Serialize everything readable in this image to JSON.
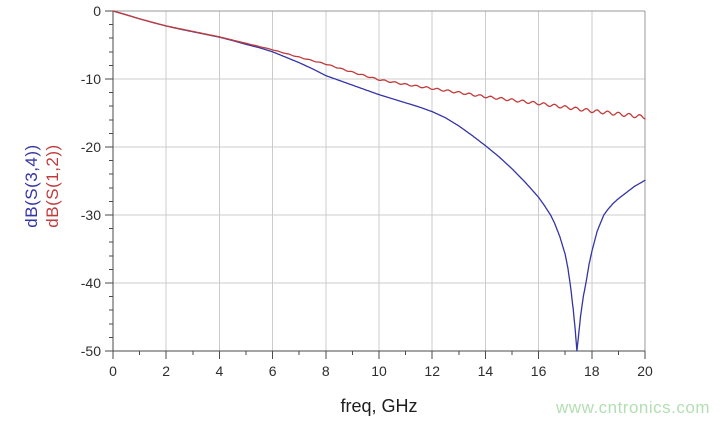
{
  "watermark": {
    "text": "www.cntronics.com",
    "color": "#b2dfb2"
  },
  "colors": {
    "background": "#ffffff",
    "grid": "#cccccc",
    "axis": "#4a4a4a",
    "frame": "#9a9a9a",
    "tick_text": "#2e2e2e"
  },
  "chart_data": {
    "type": "line",
    "title": "",
    "xlabel": "freq, GHz",
    "ylabel_lines": [
      {
        "text": "dB(S(3,4))",
        "color": "#3434a6"
      },
      {
        "text": "dB(S(1,2))",
        "color": "#c23b3b"
      }
    ],
    "xlim": [
      0,
      20
    ],
    "ylim": [
      -50,
      0
    ],
    "x_major_ticks": [
      0,
      2,
      4,
      6,
      8,
      10,
      12,
      14,
      16,
      18,
      20
    ],
    "x_minor_ticks": [
      1,
      3,
      5,
      7,
      9,
      11,
      13,
      15,
      17,
      19
    ],
    "y_major_ticks": [
      0,
      -10,
      -20,
      -30,
      -40,
      -50
    ],
    "y_minor_step": 2,
    "grid": true,
    "legend_position": "rotated labels on left axis",
    "series": [
      {
        "name": "dB(S(3,4))",
        "color": "#3434a6",
        "points": [
          [
            0,
            0
          ],
          [
            0.5,
            -0.55
          ],
          [
            1,
            -1.15
          ],
          [
            1.5,
            -1.7
          ],
          [
            2,
            -2.2
          ],
          [
            2.5,
            -2.65
          ],
          [
            3,
            -3.05
          ],
          [
            3.5,
            -3.45
          ],
          [
            4,
            -3.85
          ],
          [
            4.5,
            -4.35
          ],
          [
            5,
            -4.9
          ],
          [
            5.5,
            -5.4
          ],
          [
            6,
            -6.0
          ],
          [
            6.5,
            -6.8
          ],
          [
            7,
            -7.6
          ],
          [
            7.5,
            -8.5
          ],
          [
            8,
            -9.5
          ],
          [
            8.5,
            -10.2
          ],
          [
            9,
            -10.9
          ],
          [
            9.5,
            -11.6
          ],
          [
            10,
            -12.3
          ],
          [
            10.5,
            -12.9
          ],
          [
            11,
            -13.5
          ],
          [
            11.5,
            -14.1
          ],
          [
            12,
            -14.8
          ],
          [
            12.5,
            -15.7
          ],
          [
            13,
            -16.9
          ],
          [
            13.5,
            -18.3
          ],
          [
            14,
            -19.8
          ],
          [
            14.5,
            -21.4
          ],
          [
            15,
            -23.2
          ],
          [
            15.5,
            -25.2
          ],
          [
            16,
            -27.4
          ],
          [
            16.2,
            -28.5
          ],
          [
            16.45,
            -30
          ],
          [
            16.6,
            -31.2
          ],
          [
            16.8,
            -33.2
          ],
          [
            17,
            -35.8
          ],
          [
            17.1,
            -37.8
          ],
          [
            17.2,
            -40.5
          ],
          [
            17.3,
            -43.8
          ],
          [
            17.38,
            -47
          ],
          [
            17.44,
            -50
          ],
          [
            17.5,
            -47.8
          ],
          [
            17.58,
            -44.8
          ],
          [
            17.68,
            -42
          ],
          [
            17.78,
            -40
          ],
          [
            17.9,
            -37.2
          ],
          [
            18,
            -35.4
          ],
          [
            18.2,
            -32.4
          ],
          [
            18.45,
            -30
          ],
          [
            18.6,
            -29.2
          ],
          [
            18.8,
            -28.3
          ],
          [
            19,
            -27.6
          ],
          [
            19.3,
            -26.7
          ],
          [
            19.6,
            -25.8
          ],
          [
            20,
            -24.9
          ]
        ]
      },
      {
        "name": "dB(S(1,2))",
        "color": "#c23b3b",
        "points": [
          [
            0,
            0
          ],
          [
            1,
            -1.15
          ],
          [
            2,
            -2.2
          ],
          [
            3,
            -3.0
          ],
          [
            4,
            -3.8
          ],
          [
            5,
            -4.75
          ],
          [
            6,
            -5.7
          ],
          [
            7,
            -6.8
          ],
          [
            8,
            -7.8
          ],
          [
            9,
            -9.0
          ],
          [
            10,
            -10.1
          ],
          [
            11,
            -10.8
          ],
          [
            12,
            -11.4
          ],
          [
            13,
            -12.0
          ],
          [
            14,
            -12.6
          ],
          [
            15,
            -13.1
          ],
          [
            16,
            -13.6
          ],
          [
            17,
            -14.15
          ],
          [
            18,
            -14.7
          ],
          [
            19,
            -15.15
          ],
          [
            20,
            -15.6
          ]
        ],
        "ripple": {
          "start_ghz": 4.5,
          "max_amplitude_db": 0.27,
          "period_ghz": 0.4
        }
      }
    ]
  }
}
